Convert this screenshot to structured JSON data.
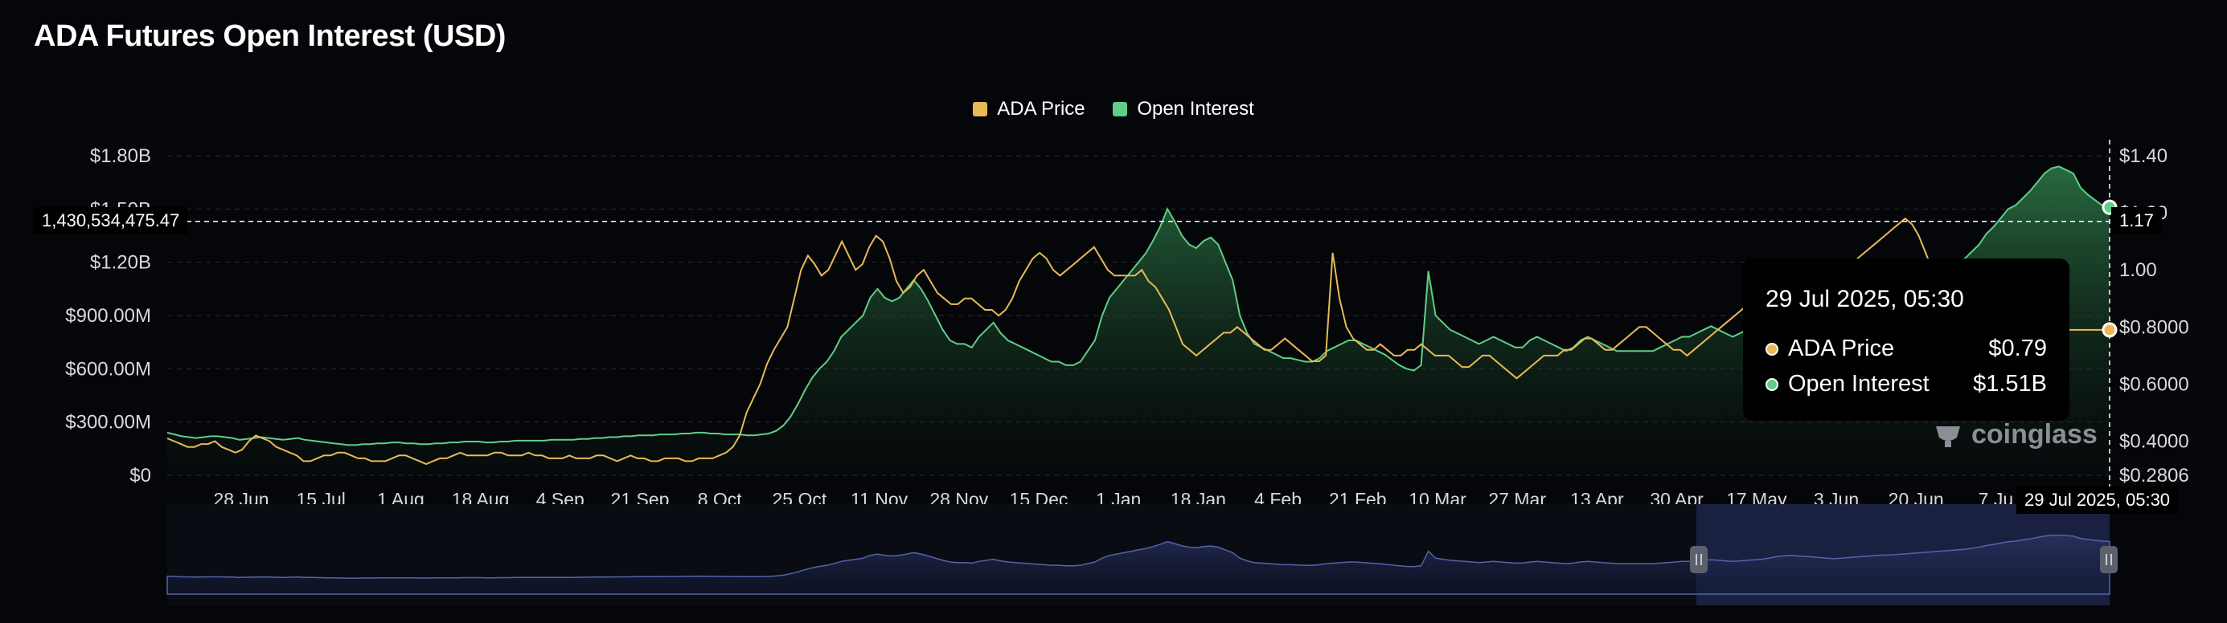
{
  "title": "ADA Futures Open Interest (USD)",
  "legend": [
    {
      "label": "ADA Price",
      "color": "#e8b955"
    },
    {
      "label": "Open Interest",
      "color": "#5fce86"
    }
  ],
  "tooltip": {
    "time": "29 Jul 2025, 05:30",
    "rows": [
      {
        "label": "ADA Price",
        "value": "$0.79",
        "color": "#e8b955"
      },
      {
        "label": "Open Interest",
        "value": "$1.51B",
        "color": "#5fce86"
      }
    ]
  },
  "crosshair": {
    "y_label": "1,430,534,475.47",
    "right_label": "1.17",
    "x_label": "29 Jul 2025, 05:30"
  },
  "watermark": "coinglass",
  "chart_data": {
    "type": "line",
    "title": "ADA Futures Open Interest (USD)",
    "x_ticks": [
      "28 Jun",
      "15 Jul",
      "1 Aug",
      "18 Aug",
      "4 Sep",
      "21 Sep",
      "8 Oct",
      "25 Oct",
      "11 Nov",
      "28 Nov",
      "15 Dec",
      "1 Jan",
      "18 Jan",
      "4 Feb",
      "21 Feb",
      "10 Mar",
      "27 Mar",
      "13 Apr",
      "30 Apr",
      "17 May",
      "3 Jun",
      "20 Jun",
      "7 Ju"
    ],
    "y_left_ticks": [
      "$0",
      "$300.00M",
      "$600.00M",
      "$900.00M",
      "$1.20B",
      "$1.50B",
      "$1.80B"
    ],
    "y_left_range": [
      0,
      1800000000
    ],
    "y_right_ticks": [
      "$0.2806",
      "$0.4000",
      "$0.6000",
      "$0.8000",
      "1.00",
      "$1.20",
      "$1.40"
    ],
    "y_right_range": [
      0.2806,
      1.4
    ],
    "x_count": 400,
    "series": [
      {
        "name": "Open Interest",
        "axis": "left",
        "color": "#5fce86",
        "values_millions": [
          240,
          230,
          220,
          215,
          210,
          215,
          220,
          220,
          215,
          210,
          200,
          205,
          210,
          215,
          210,
          205,
          200,
          205,
          210,
          200,
          195,
          190,
          185,
          180,
          175,
          170,
          170,
          175,
          175,
          180,
          180,
          185,
          185,
          180,
          180,
          175,
          175,
          180,
          180,
          185,
          185,
          190,
          190,
          190,
          185,
          185,
          190,
          190,
          195,
          195,
          195,
          195,
          195,
          200,
          200,
          200,
          200,
          205,
          205,
          210,
          210,
          215,
          215,
          220,
          220,
          225,
          225,
          225,
          230,
          230,
          230,
          235,
          235,
          240,
          240,
          235,
          235,
          230,
          230,
          230,
          225,
          225,
          230,
          235,
          250,
          280,
          330,
          400,
          480,
          550,
          600,
          640,
          700,
          780,
          820,
          860,
          900,
          1000,
          1050,
          1000,
          980,
          1000,
          1050,
          1100,
          1050,
          980,
          900,
          820,
          760,
          740,
          740,
          720,
          780,
          820,
          860,
          800,
          760,
          740,
          720,
          700,
          680,
          660,
          640,
          640,
          620,
          620,
          640,
          700,
          760,
          900,
          1000,
          1050,
          1100,
          1150,
          1200,
          1250,
          1320,
          1400,
          1500,
          1430,
          1350,
          1300,
          1280,
          1320,
          1340,
          1300,
          1200,
          1100,
          900,
          800,
          740,
          720,
          700,
          680,
          660,
          660,
          650,
          640,
          640,
          660,
          700,
          720,
          740,
          760,
          760,
          740,
          720,
          700,
          680,
          650,
          620,
          600,
          590,
          620,
          1150,
          900,
          860,
          820,
          800,
          780,
          760,
          740,
          760,
          780,
          760,
          740,
          720,
          720,
          760,
          780,
          760,
          740,
          720,
          700,
          720,
          760,
          780,
          760,
          740,
          720,
          700,
          700,
          700,
          700,
          700,
          700,
          720,
          740,
          760,
          780,
          780,
          800,
          820,
          840,
          820,
          800,
          780,
          800,
          820,
          840,
          860,
          900,
          950,
          980,
          1000,
          980,
          960,
          940,
          920,
          900,
          880,
          900,
          920,
          940,
          960,
          980,
          1000,
          1010,
          1020,
          1040,
          1060,
          1080,
          1100,
          1120,
          1140,
          1160,
          1180,
          1200,
          1220,
          1260,
          1300,
          1360,
          1400,
          1450,
          1500,
          1520,
          1560,
          1600,
          1650,
          1700,
          1730,
          1740,
          1720,
          1700,
          1620,
          1580,
          1550,
          1520,
          1510
        ],
        "note_points": 285
      },
      {
        "name": "ADA Price",
        "axis": "right",
        "color": "#e8b955",
        "values": [
          0.41,
          0.4,
          0.39,
          0.38,
          0.38,
          0.39,
          0.39,
          0.4,
          0.38,
          0.37,
          0.36,
          0.37,
          0.4,
          0.42,
          0.41,
          0.4,
          0.38,
          0.37,
          0.36,
          0.35,
          0.33,
          0.33,
          0.34,
          0.35,
          0.35,
          0.36,
          0.36,
          0.35,
          0.34,
          0.34,
          0.33,
          0.33,
          0.33,
          0.34,
          0.35,
          0.35,
          0.34,
          0.33,
          0.32,
          0.33,
          0.34,
          0.34,
          0.35,
          0.36,
          0.35,
          0.35,
          0.35,
          0.35,
          0.36,
          0.36,
          0.35,
          0.35,
          0.35,
          0.36,
          0.35,
          0.35,
          0.34,
          0.34,
          0.34,
          0.35,
          0.34,
          0.34,
          0.34,
          0.35,
          0.35,
          0.34,
          0.33,
          0.34,
          0.35,
          0.34,
          0.34,
          0.33,
          0.33,
          0.34,
          0.34,
          0.34,
          0.33,
          0.33,
          0.34,
          0.34,
          0.34,
          0.35,
          0.36,
          0.38,
          0.42,
          0.5,
          0.55,
          0.6,
          0.67,
          0.72,
          0.76,
          0.8,
          0.9,
          1.0,
          1.05,
          1.02,
          0.98,
          1.0,
          1.05,
          1.1,
          1.05,
          1.0,
          1.02,
          1.08,
          1.12,
          1.1,
          1.04,
          0.96,
          0.92,
          0.94,
          0.98,
          1.0,
          0.96,
          0.92,
          0.9,
          0.88,
          0.88,
          0.9,
          0.9,
          0.88,
          0.86,
          0.86,
          0.84,
          0.86,
          0.9,
          0.96,
          1.0,
          1.04,
          1.06,
          1.04,
          1.0,
          0.98,
          1.0,
          1.02,
          1.04,
          1.06,
          1.08,
          1.04,
          1.0,
          0.98,
          0.98,
          0.98,
          0.98,
          1.0,
          0.96,
          0.94,
          0.9,
          0.86,
          0.8,
          0.74,
          0.72,
          0.7,
          0.72,
          0.74,
          0.76,
          0.78,
          0.78,
          0.8,
          0.78,
          0.76,
          0.74,
          0.72,
          0.72,
          0.74,
          0.76,
          0.74,
          0.72,
          0.7,
          0.68,
          0.68,
          0.7,
          1.06,
          0.9,
          0.8,
          0.76,
          0.74,
          0.72,
          0.72,
          0.74,
          0.72,
          0.7,
          0.7,
          0.72,
          0.72,
          0.74,
          0.72,
          0.7,
          0.7,
          0.7,
          0.68,
          0.66,
          0.66,
          0.68,
          0.7,
          0.7,
          0.68,
          0.66,
          0.64,
          0.62,
          0.64,
          0.66,
          0.68,
          0.7,
          0.7,
          0.7,
          0.72,
          0.72,
          0.74,
          0.76,
          0.76,
          0.74,
          0.72,
          0.72,
          0.74,
          0.76,
          0.78,
          0.8,
          0.8,
          0.78,
          0.76,
          0.74,
          0.72,
          0.72,
          0.7,
          0.72,
          0.74,
          0.76,
          0.78,
          0.8,
          0.82,
          0.84,
          0.86,
          0.88,
          0.9,
          0.9,
          0.88,
          0.86,
          0.84,
          0.84,
          0.86,
          0.88,
          0.9,
          0.92,
          0.94,
          0.96,
          0.98,
          1.0,
          1.02,
          1.04,
          1.06,
          1.08,
          1.1,
          1.12,
          1.14,
          1.16,
          1.18,
          1.16,
          1.12,
          1.06,
          1.0,
          0.96,
          0.9,
          0.86,
          0.84,
          0.82,
          0.8,
          0.79,
          0.79,
          0.79,
          0.79,
          0.79,
          0.79,
          0.79,
          0.79,
          0.79,
          0.79,
          0.79,
          0.79,
          0.79,
          0.79,
          0.79,
          0.79,
          0.79,
          0.79,
          0.79,
          0.79
        ]
      }
    ]
  }
}
